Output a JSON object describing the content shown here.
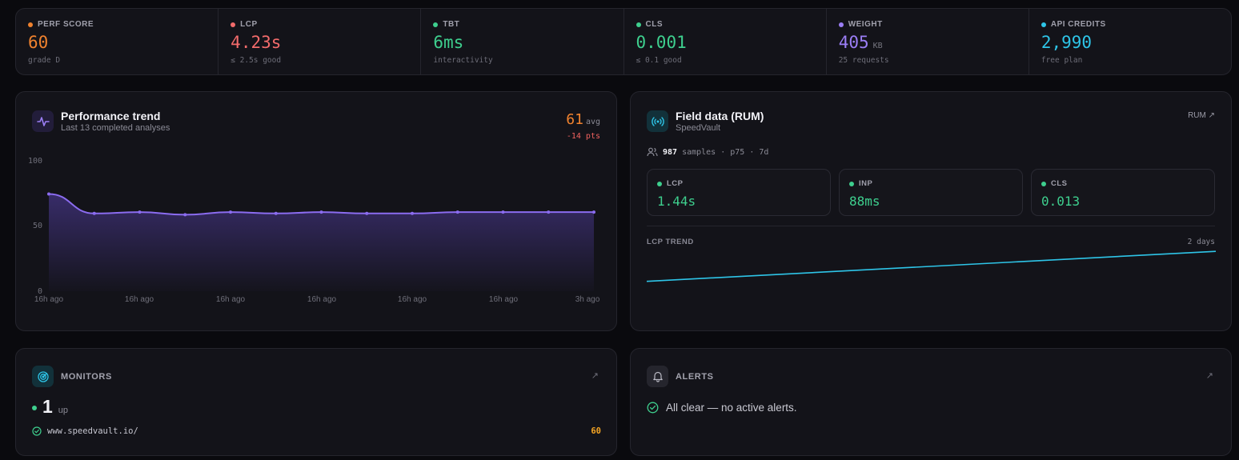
{
  "metrics": [
    {
      "label": "PERF SCORE",
      "value": "60",
      "unit": "",
      "sub": "grade D",
      "color": "#f0822e"
    },
    {
      "label": "LCP",
      "value": "4.23s",
      "unit": "",
      "sub": "≤ 2.5s good",
      "color": "#f26b6b"
    },
    {
      "label": "TBT",
      "value": "6ms",
      "unit": "",
      "sub": "interactivity",
      "color": "#3ecf8e"
    },
    {
      "label": "CLS",
      "value": "0.001",
      "unit": "",
      "sub": "≤ 0.1 good",
      "color": "#3ecf8e"
    },
    {
      "label": "WEIGHT",
      "value": "405",
      "unit": "KB",
      "sub": "25 requests",
      "color": "#9b7ef5"
    },
    {
      "label": "API CREDITS",
      "value": "2,990",
      "unit": "",
      "sub": "free plan",
      "color": "#2ec5e8"
    }
  ],
  "trend": {
    "title": "Performance trend",
    "subtitle": "Last 13 completed analyses",
    "avg_value": "61",
    "avg_label": "avg",
    "delta": "-14 pts",
    "icon": "activity-icon",
    "chart_data": {
      "type": "area",
      "x": [
        "16h ago",
        "16h ago",
        "16h ago",
        "16h ago",
        "16h ago",
        "16h ago",
        "16h ago",
        "16h ago",
        "16h ago",
        "16h ago",
        "16h ago",
        "16h ago",
        "3h ago"
      ],
      "tick_labels": [
        "16h ago",
        "16h ago",
        "16h ago",
        "16h ago",
        "16h ago",
        "16h ago",
        "3h ago"
      ],
      "series": [
        {
          "values": [
            75,
            60,
            61,
            59,
            61,
            60,
            61,
            60,
            60,
            61,
            61,
            61,
            61
          ]
        }
      ],
      "ylim": [
        0,
        100
      ],
      "yticks": [
        "100",
        "50",
        "0"
      ],
      "color": "#8b6cf0"
    }
  },
  "rum": {
    "title": "Field data (RUM)",
    "subtitle": "SpeedVault",
    "link": "RUM ↗",
    "icon": "broadcast-icon",
    "samples_count": "987",
    "samples_text": "samples · p75 · 7d",
    "metrics": [
      {
        "label": "LCP",
        "value": "1.44s"
      },
      {
        "label": "INP",
        "value": "88ms"
      },
      {
        "label": "CLS",
        "value": "0.013"
      }
    ],
    "trend_label": "LCP TREND",
    "trend_range": "2 days",
    "chart_data": {
      "type": "line",
      "series": [
        {
          "values": [
            1.0,
            1.9
          ]
        }
      ],
      "color": "#2ec5e8"
    }
  },
  "monitors": {
    "title": "MONITORS",
    "icon": "radar-icon",
    "count": "1",
    "count_label": "up",
    "items": [
      {
        "url": "www.speedvault.io/",
        "score": "60"
      }
    ]
  },
  "alerts": {
    "title": "ALERTS",
    "icon": "bell-icon",
    "message": "All clear — no active alerts."
  }
}
